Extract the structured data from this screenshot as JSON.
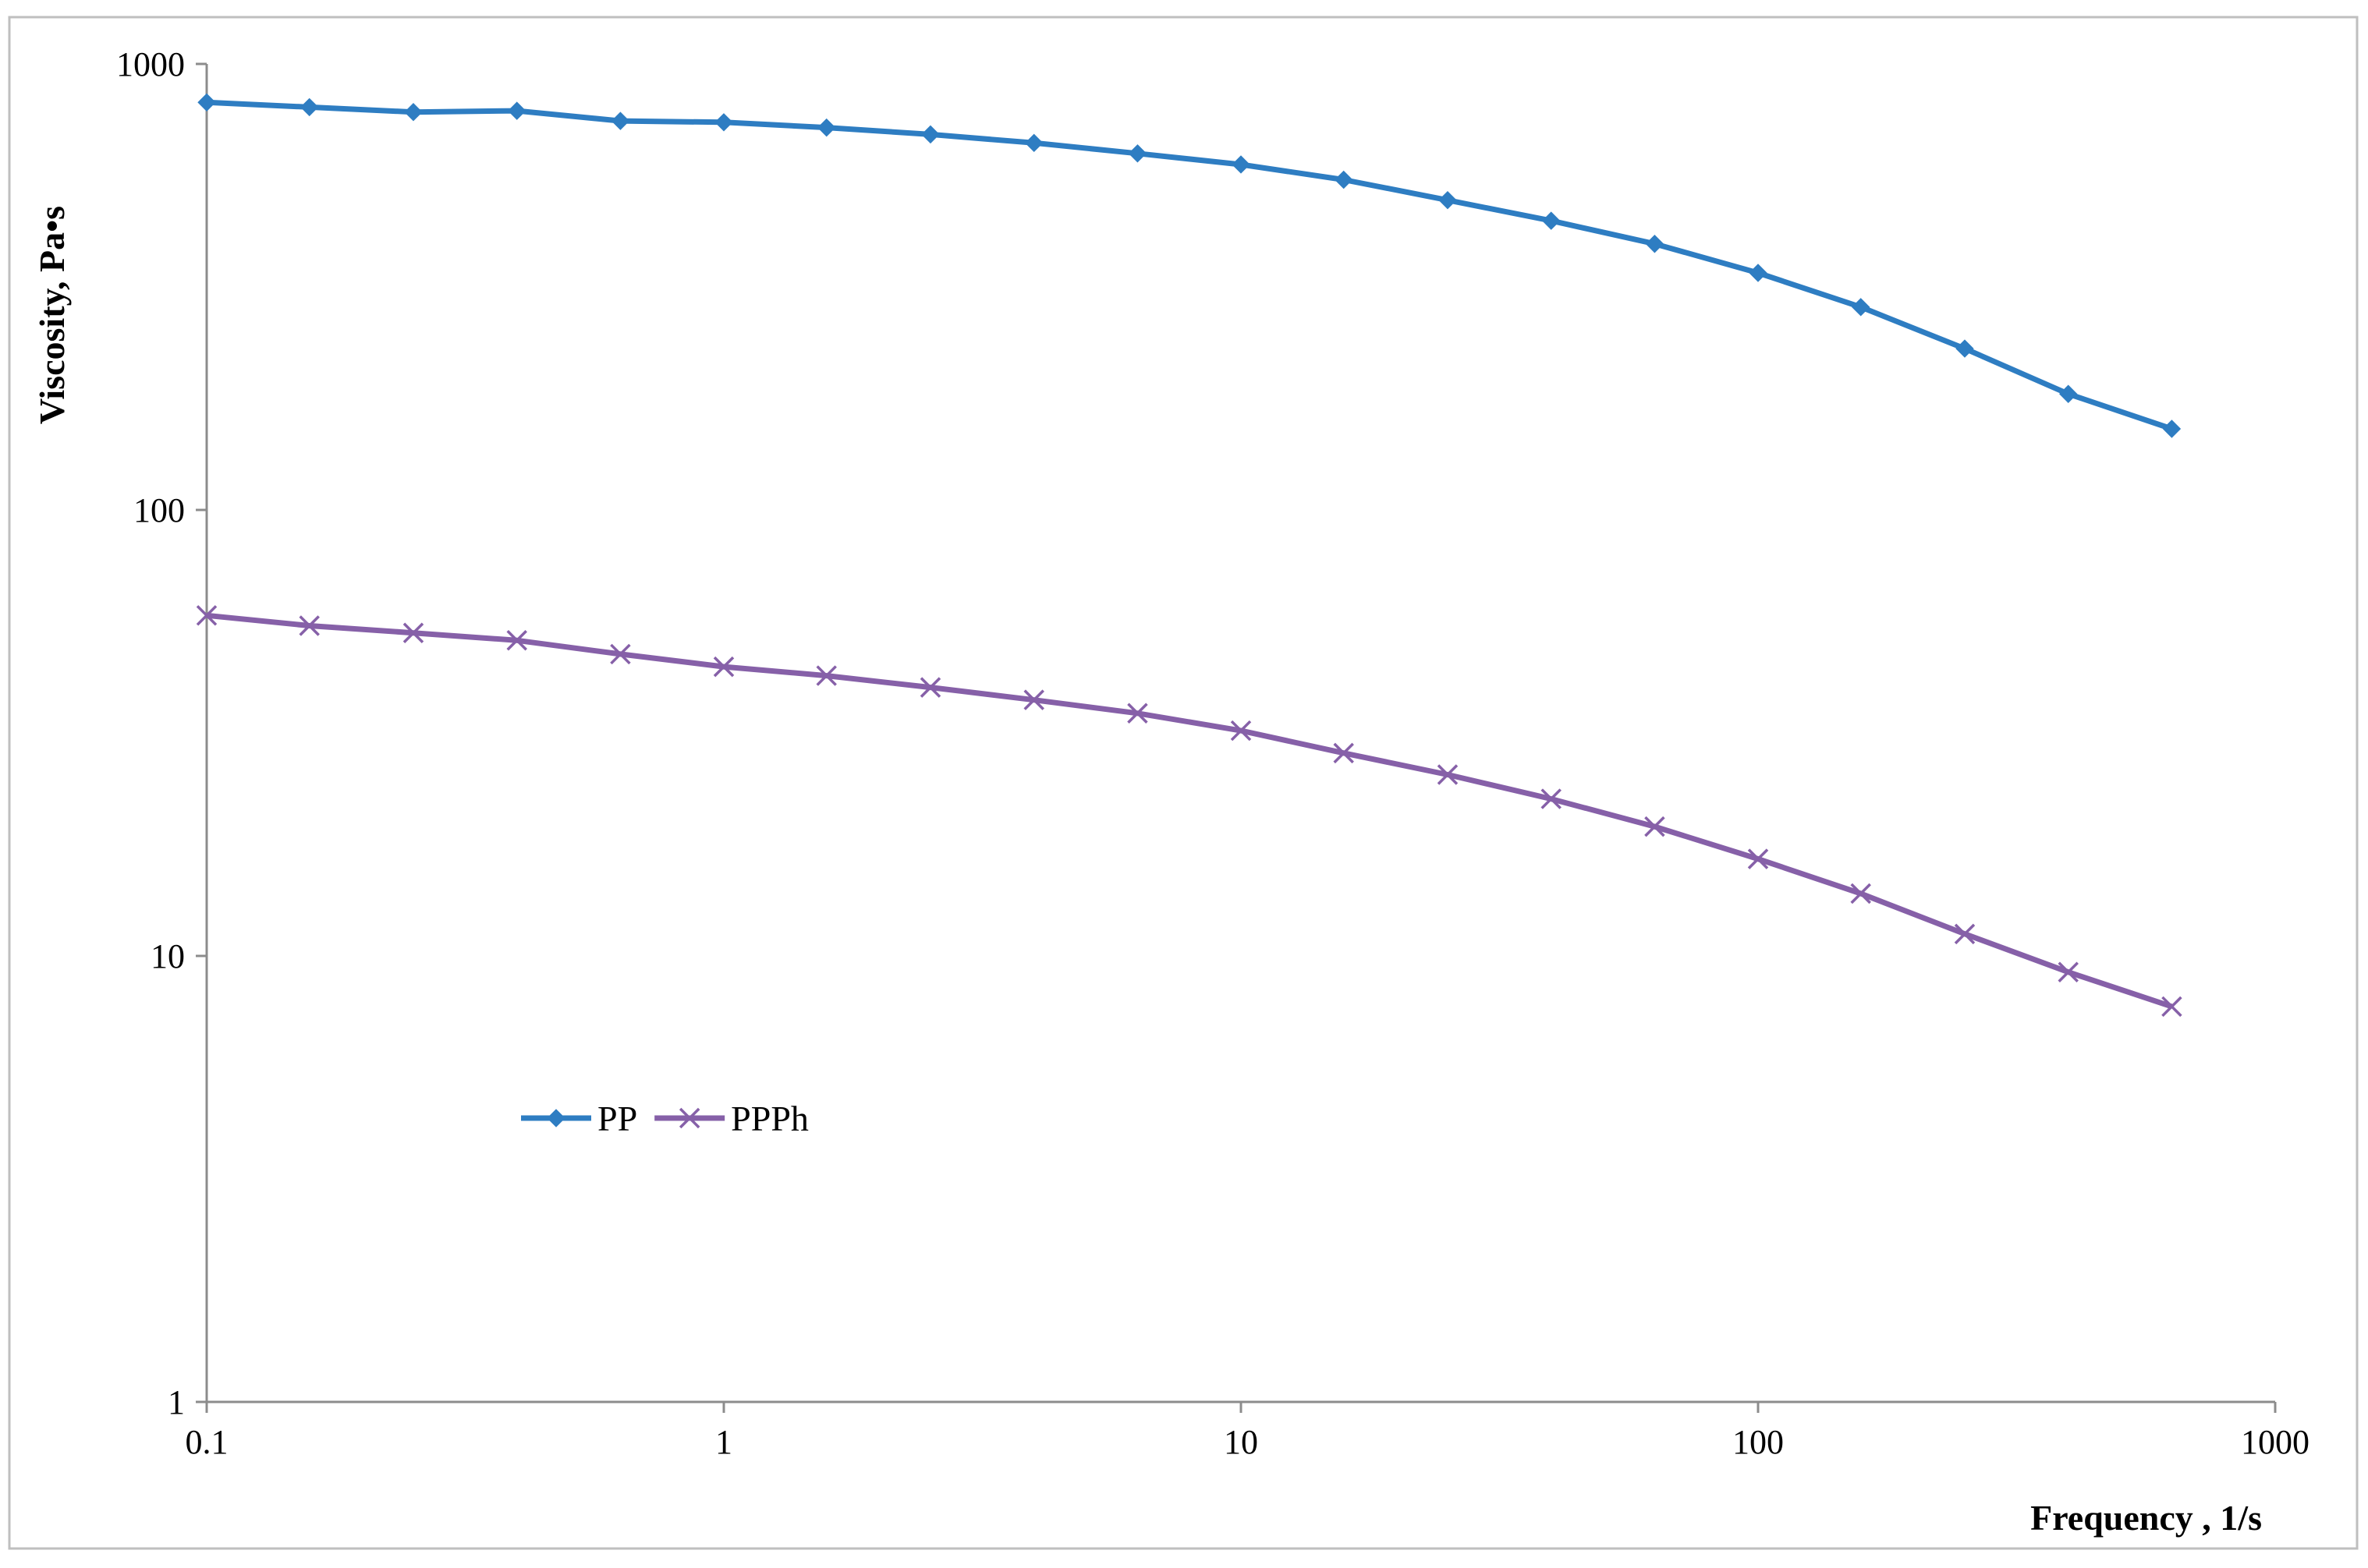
{
  "chart_data": {
    "type": "line",
    "title": "",
    "xlabel": "Frequency , 1/s",
    "ylabel": "Viscosity, Pa•s",
    "x_scale": "log",
    "y_scale": "log",
    "xlim": [
      0.1,
      1000
    ],
    "ylim": [
      1,
      1000
    ],
    "x_ticks": [
      "0.1",
      "1",
      "10",
      "100",
      "1000"
    ],
    "y_ticks": [
      "1",
      "10",
      "100",
      "1000"
    ],
    "grid": false,
    "legend_position": "lower-left",
    "x": [
      0.1,
      0.158,
      0.251,
      0.398,
      0.631,
      1,
      1.58,
      2.51,
      3.98,
      6.31,
      10,
      15.8,
      25.1,
      39.8,
      63.1,
      100,
      158,
      251,
      398,
      631
    ],
    "series": [
      {
        "name": "PP",
        "color": "#2e7dc2",
        "marker": "diamond",
        "values": [
          820,
          800,
          780,
          785,
          745,
          740,
          720,
          695,
          665,
          630,
          595,
          550,
          495,
          445,
          395,
          340,
          285,
          230,
          182,
          152
        ]
      },
      {
        "name": "PPPh",
        "color": "#8660a8",
        "marker": "x",
        "values": [
          58,
          55,
          53,
          51,
          47.5,
          44.5,
          42.5,
          40,
          37.5,
          35,
          32,
          28.5,
          25.5,
          22.5,
          19.5,
          16.5,
          13.8,
          11.2,
          9.2,
          7.7
        ]
      }
    ]
  }
}
